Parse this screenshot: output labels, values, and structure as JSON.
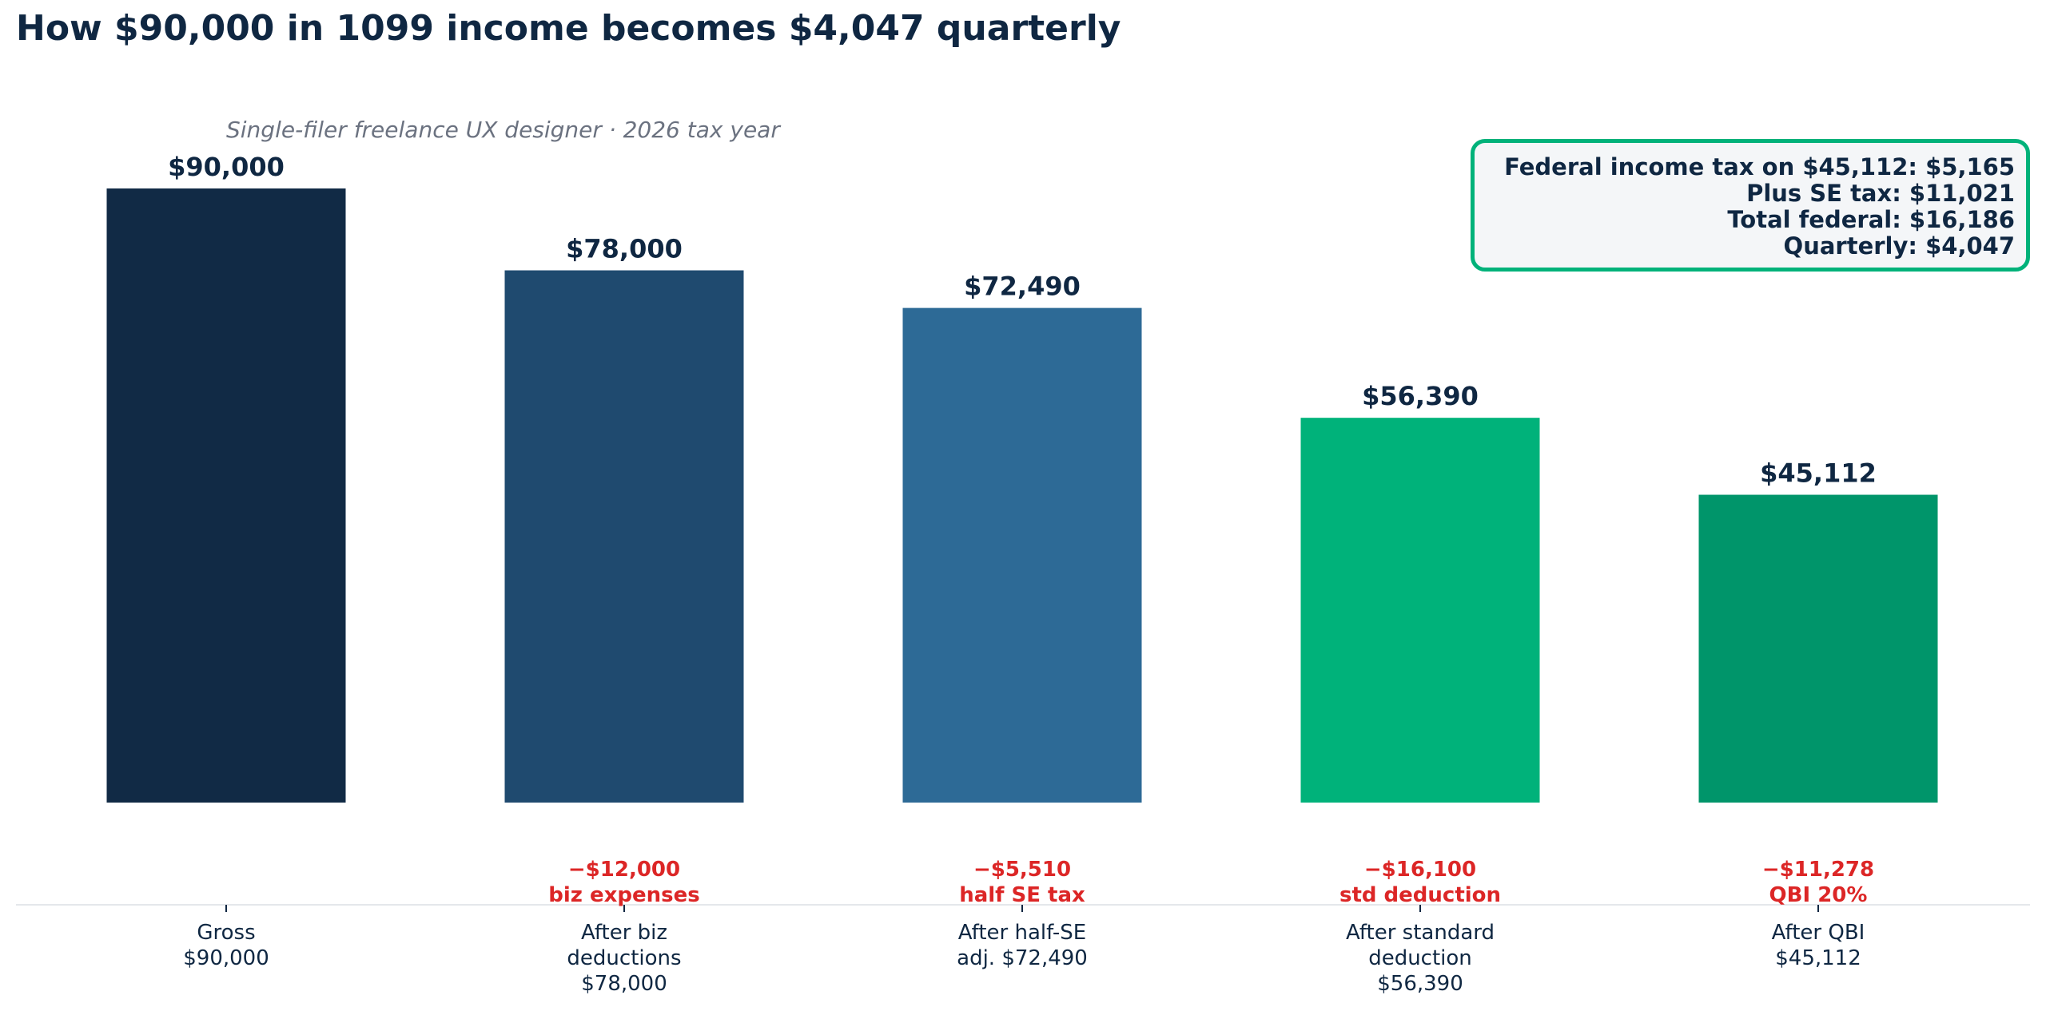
{
  "chart_data": {
    "type": "bar",
    "title": "How $90,000 in 1099 income becomes $4,047 quarterly",
    "subtitle": "Single-filer freelance UX designer · 2026 tax year",
    "categories": [
      [
        "Gross",
        "$90,000"
      ],
      [
        "After biz",
        "deductions",
        "$78,000"
      ],
      [
        "After half-SE",
        "adj. $72,490"
      ],
      [
        "After standard",
        "deduction",
        "$56,390"
      ],
      [
        "After QBI",
        "$45,112"
      ]
    ],
    "values": [
      90000,
      78000,
      72490,
      56390,
      45112
    ],
    "value_labels": [
      "$90,000",
      "$78,000",
      "$72,490",
      "$56,390",
      "$45,112"
    ],
    "deductions": [
      null,
      {
        "amount": "−$12,000",
        "label": "biz expenses"
      },
      {
        "amount": "−$5,510",
        "label": "half SE tax"
      },
      {
        "amount": "−$16,100",
        "label": "std deduction"
      },
      {
        "amount": "−$11,278",
        "label": "QBI 20%"
      }
    ],
    "colors": [
      "#112a45",
      "#1f4a6f",
      "#2d6a96",
      "#00b27a",
      "#00956a"
    ],
    "ylim": [
      0,
      90000
    ],
    "y_axis_visible": false,
    "grid": false,
    "summary_box": {
      "lines": [
        "Federal income tax on $45,112: $5,165",
        "Plus SE tax: $11,021",
        "Total federal: $16,186",
        "Quarterly: $4,047"
      ],
      "border_color": "#00b27a"
    }
  }
}
